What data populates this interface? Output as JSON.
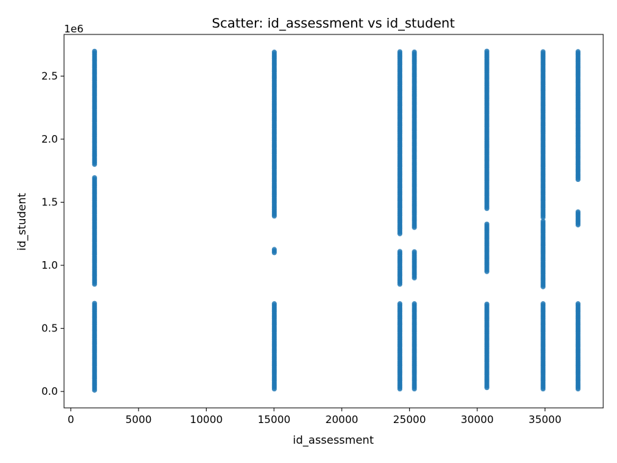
{
  "chart_data": {
    "type": "scatter",
    "title": "Scatter: id_assessment vs id_student",
    "xlabel": "id_assessment",
    "ylabel": "id_student",
    "y_offset_label": "1e6",
    "xlim": [
      -500,
      39300
    ],
    "ylim": [
      -130000,
      2830000
    ],
    "x_ticks": [
      0,
      5000,
      10000,
      15000,
      20000,
      25000,
      30000,
      35000
    ],
    "x_tick_labels": [
      "0",
      "5000",
      "10000",
      "15000",
      "20000",
      "25000",
      "30000",
      "35000"
    ],
    "y_ticks": [
      0,
      500000,
      1000000,
      1500000,
      2000000,
      2500000
    ],
    "y_tick_labels": [
      "0.0",
      "0.5",
      "1.0",
      "1.5",
      "2.0",
      "2.5"
    ],
    "grid": false,
    "color": "#1f77b4",
    "series": [
      {
        "x_values": [
          1752,
          15020,
          24290,
          25360,
          30710,
          34860,
          37440
        ],
        "point_ranges": [
          [
            [
              10000,
              700000
            ],
            [
              850000,
              1700000
            ],
            [
              1800000,
              2700000
            ]
          ],
          [
            [
              20000,
              700000
            ],
            [
              1100000,
              1130000
            ],
            [
              1390000,
              2700000
            ]
          ],
          [
            [
              20000,
              700000
            ],
            [
              850000,
              1120000
            ],
            [
              1250000,
              2700000
            ]
          ],
          [
            [
              20000,
              700000
            ],
            [
              900000,
              1110000
            ],
            [
              1300000,
              2700000
            ]
          ],
          [
            [
              30000,
              700000
            ],
            [
              950000,
              1330000
            ],
            [
              1450000,
              2700000
            ]
          ],
          [
            [
              20000,
              700000
            ],
            [
              830000,
              1350000
            ],
            [
              1380000,
              2700000
            ]
          ],
          [
            [
              20000,
              700000
            ],
            [
              1320000,
              1430000
            ],
            [
              1680000,
              2700000
            ]
          ]
        ]
      }
    ]
  }
}
